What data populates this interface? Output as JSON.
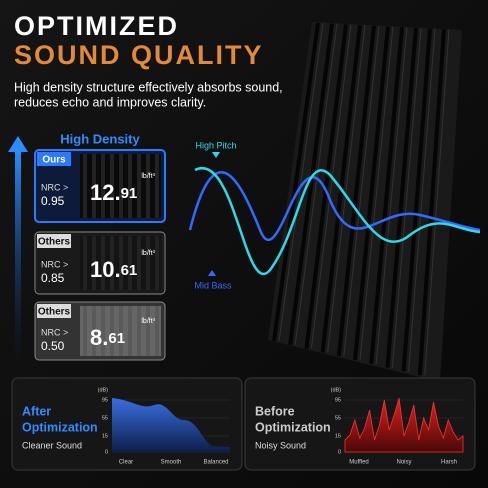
{
  "header": {
    "title_line1": "OPTIMIZED",
    "title_line2": "SOUND QUALITY",
    "subtitle_line1": "High density structure effectively absorbs sound,",
    "subtitle_line2": "reduces echo and improves clarity."
  },
  "density_label": "High Density",
  "cards": [
    {
      "tag": "Ours",
      "nrc_label": "NRC >",
      "nrc": "0.95",
      "whole": "12.",
      "frac": "91",
      "unit": "lb/ft³"
    },
    {
      "tag": "Others",
      "nrc_label": "NRC >",
      "nrc": "0.85",
      "whole": "10.",
      "frac": "61",
      "unit": "lb/ft³"
    },
    {
      "tag": "Others",
      "nrc_label": "NRC >",
      "nrc": "0.50",
      "whole": "8.",
      "frac": "61",
      "unit": "lb/ft³"
    }
  ],
  "waves": {
    "high": "High Pitch",
    "low": "Mid Bass"
  },
  "panels": [
    {
      "title": [
        "After",
        "Optimization"
      ],
      "caption": "Cleaner Sound",
      "unit": "(dB)",
      "ticks": [
        "95",
        "55",
        "15",
        "0"
      ],
      "labels": [
        "Clear",
        "Smooth",
        "Balanced"
      ]
    },
    {
      "title": [
        "Before",
        "Optimization"
      ],
      "caption": "Noisy Sound",
      "unit": "(dB)",
      "ticks": [
        "95",
        "55",
        "15",
        "0"
      ],
      "labels": [
        "Muffled",
        "Noisy",
        "Harsh"
      ]
    }
  ]
}
